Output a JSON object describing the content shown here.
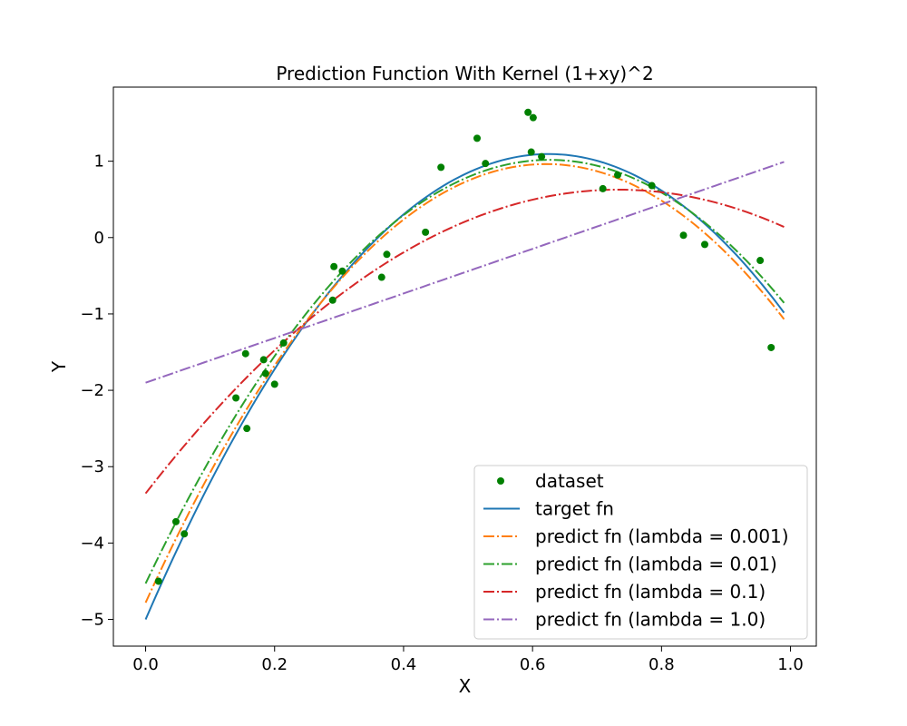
{
  "chart_data": {
    "type": "line",
    "title": "Prediction Function With Kernel (1+xy)^2",
    "xlabel": "X",
    "ylabel": "Y",
    "xlim": [
      -0.05,
      1.04
    ],
    "ylim": [
      -5.35,
      1.97
    ],
    "x_ticks": [
      0.0,
      0.2,
      0.4,
      0.6,
      0.8,
      1.0
    ],
    "x_tick_labels": [
      "0.0",
      "0.2",
      "0.4",
      "0.6",
      "0.8",
      "1.0"
    ],
    "y_ticks": [
      -5,
      -4,
      -3,
      -2,
      -1,
      0,
      1
    ],
    "y_tick_labels": [
      "−5",
      "−4",
      "−3",
      "−2",
      "−1",
      "0",
      "1"
    ],
    "grid": false,
    "legend_position": "lower-right",
    "scatter": {
      "name": "dataset",
      "color": "#008000",
      "points": [
        [
          0.02,
          -4.5
        ],
        [
          0.047,
          -3.72
        ],
        [
          0.06,
          -3.88
        ],
        [
          0.14,
          -2.1
        ],
        [
          0.155,
          -1.52
        ],
        [
          0.157,
          -2.5
        ],
        [
          0.183,
          -1.6
        ],
        [
          0.186,
          -1.78
        ],
        [
          0.2,
          -1.92
        ],
        [
          0.214,
          -1.38
        ],
        [
          0.29,
          -0.82
        ],
        [
          0.292,
          -0.38
        ],
        [
          0.305,
          -0.44
        ],
        [
          0.366,
          -0.52
        ],
        [
          0.374,
          -0.22
        ],
        [
          0.434,
          0.07
        ],
        [
          0.458,
          0.92
        ],
        [
          0.514,
          1.3
        ],
        [
          0.527,
          0.97
        ],
        [
          0.593,
          1.64
        ],
        [
          0.598,
          1.12
        ],
        [
          0.601,
          1.57
        ],
        [
          0.614,
          1.06
        ],
        [
          0.709,
          0.64
        ],
        [
          0.732,
          0.82
        ],
        [
          0.785,
          0.68
        ],
        [
          0.834,
          0.03
        ],
        [
          0.867,
          -0.09
        ],
        [
          0.953,
          -0.3
        ],
        [
          0.97,
          -1.44
        ]
      ]
    },
    "series": [
      {
        "name": "target fn",
        "color": "#1f77b4",
        "style": "solid",
        "quadratic": [
          -5.0,
          19.5,
          -15.6
        ]
      },
      {
        "name": "predict fn (lambda = 0.001)",
        "color": "#ff7f0e",
        "style": "dashdot",
        "quadratic": [
          -4.78,
          18.5,
          -14.9
        ]
      },
      {
        "name": "predict fn (lambda = 0.01)",
        "color": "#2ca02c",
        "style": "dashdot",
        "quadratic": [
          -4.53,
          17.72,
          -14.15
        ]
      },
      {
        "name": "predict fn (lambda = 0.1)",
        "color": "#d62728",
        "style": "dashdot",
        "quadratic": [
          -3.35,
          10.85,
          -7.4
        ]
      },
      {
        "name": "predict fn (lambda = 1.0)",
        "color": "#9467bd",
        "style": "dashdot",
        "quadratic": [
          -1.9,
          2.92,
          0.0
        ]
      }
    ],
    "x_range": [
      0.0,
      0.99
    ],
    "legend": [
      "dataset",
      "target fn",
      "predict fn (lambda = 0.001)",
      "predict fn (lambda = 0.01)",
      "predict fn (lambda = 0.1)",
      "predict fn (lambda = 1.0)"
    ]
  }
}
